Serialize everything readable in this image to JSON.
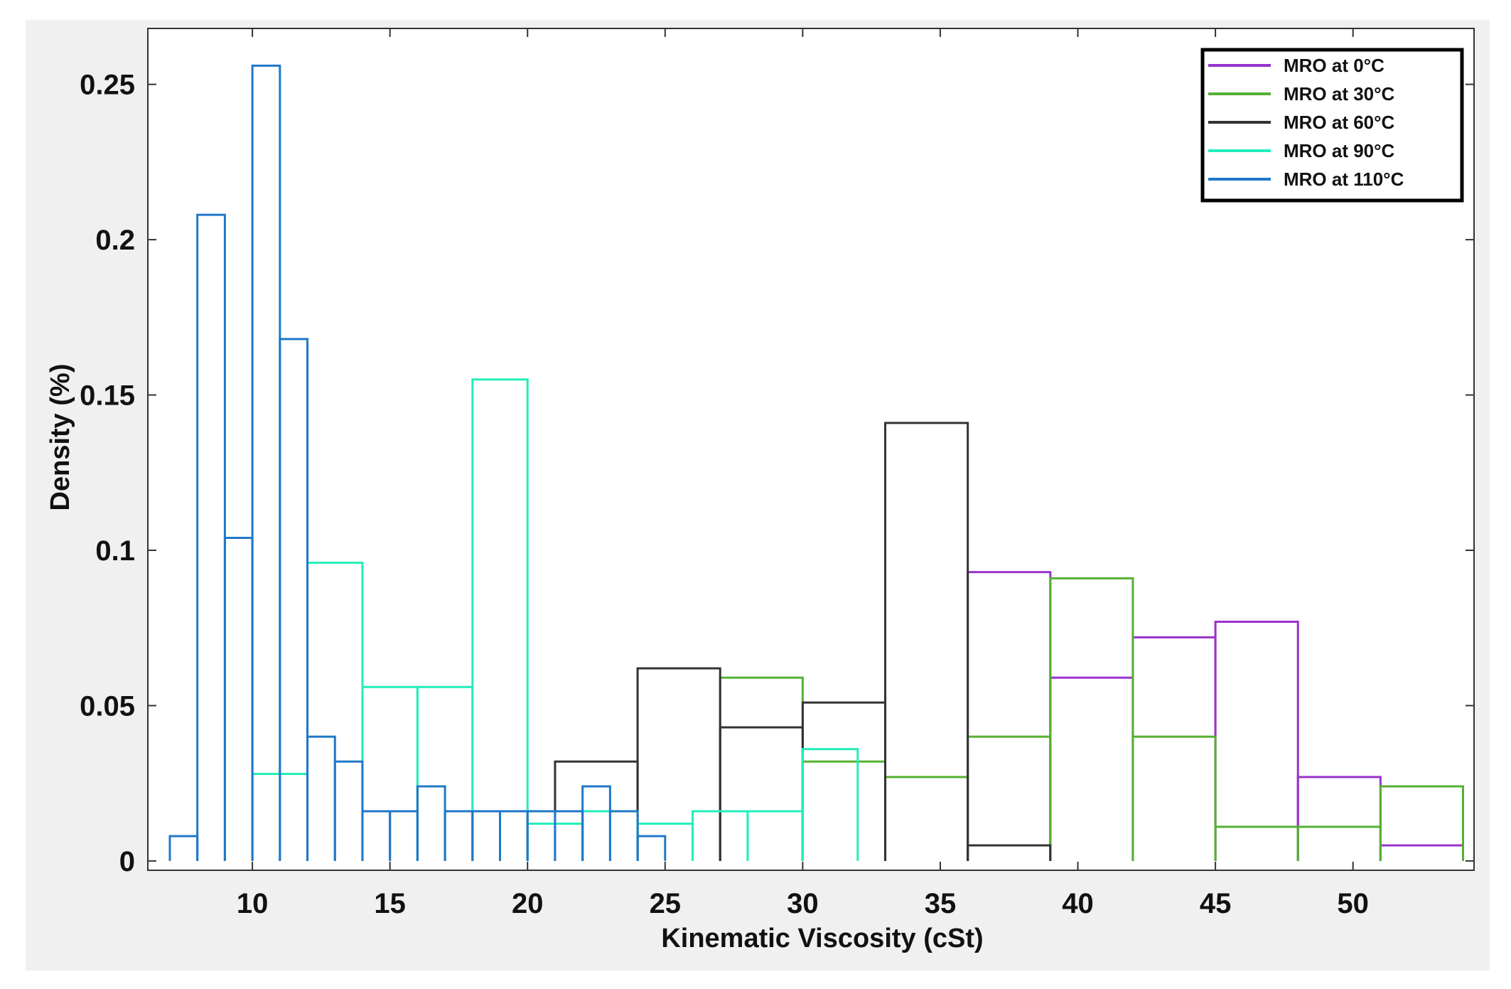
{
  "chart_data": {
    "type": "histogram",
    "title": "",
    "xlabel": "Kinematic Viscosity (cSt)",
    "ylabel": "Density (%)",
    "xlim": [
      6.2,
      54.4
    ],
    "ylim": [
      -0.003,
      0.268
    ],
    "xticks": [
      10,
      15,
      20,
      25,
      30,
      35,
      40,
      45,
      50
    ],
    "xtick_labels": [
      "10",
      "15",
      "20",
      "25",
      "30",
      "35",
      "40",
      "45",
      "50"
    ],
    "yticks": [
      0,
      0.05,
      0.1,
      0.15,
      0.2,
      0.25
    ],
    "ytick_labels": [
      "0",
      "0.05",
      "0.1",
      "0.15",
      "0.2",
      "0.25"
    ],
    "legend_position": "top-right",
    "series": [
      {
        "name": "MRO at 0°C",
        "color": "#9933cc",
        "bins": [
          [
            36,
            39,
            0.093
          ],
          [
            39,
            42,
            0.059
          ],
          [
            42,
            45,
            0.072
          ],
          [
            45,
            48,
            0.077
          ],
          [
            48,
            51,
            0.027
          ],
          [
            51,
            54,
            0.005
          ]
        ]
      },
      {
        "name": "MRO at 30°C",
        "color": "#55b033",
        "bins": [
          [
            27,
            30,
            0.059
          ],
          [
            30,
            33,
            0.032
          ],
          [
            33,
            36,
            0.027
          ],
          [
            36,
            39,
            0.04
          ],
          [
            39,
            42,
            0.091
          ],
          [
            42,
            45,
            0.04
          ],
          [
            45,
            48,
            0.011
          ],
          [
            48,
            51,
            0.011
          ],
          [
            51,
            54,
            0.024
          ]
        ]
      },
      {
        "name": "MRO at 60°C",
        "color": "#333333",
        "bins": [
          [
            21,
            24,
            0.032
          ],
          [
            24,
            27,
            0.062
          ],
          [
            27,
            30,
            0.043
          ],
          [
            30,
            33,
            0.051
          ],
          [
            33,
            36,
            0.141
          ],
          [
            36,
            39,
            0.005
          ]
        ]
      },
      {
        "name": "MRO at 90°C",
        "color": "#22eebb",
        "bins": [
          [
            10,
            12,
            0.028
          ],
          [
            12,
            14,
            0.096
          ],
          [
            14,
            16,
            0.056
          ],
          [
            16,
            18,
            0.056
          ],
          [
            18,
            20,
            0.155
          ],
          [
            20,
            22,
            0.012
          ],
          [
            22,
            24,
            0.016
          ],
          [
            24,
            26,
            0.012
          ],
          [
            26,
            28,
            0.016
          ],
          [
            28,
            30,
            0.016
          ],
          [
            30,
            32,
            0.036
          ]
        ]
      },
      {
        "name": "MRO at 110°C",
        "color": "#1f78c8",
        "bins": [
          [
            7,
            8,
            0.008
          ],
          [
            8,
            9,
            0.208
          ],
          [
            9,
            10,
            0.104
          ],
          [
            10,
            11,
            0.256
          ],
          [
            11,
            12,
            0.168
          ],
          [
            12,
            13,
            0.04
          ],
          [
            13,
            14,
            0.032
          ],
          [
            14,
            15,
            0.016
          ],
          [
            15,
            16,
            0.016
          ],
          [
            16,
            17,
            0.024
          ],
          [
            17,
            18,
            0.016
          ],
          [
            18,
            19,
            0.016
          ],
          [
            19,
            20,
            0.016
          ],
          [
            20,
            21,
            0.016
          ],
          [
            21,
            22,
            0.016
          ],
          [
            22,
            23,
            0.024
          ],
          [
            23,
            24,
            0.016
          ],
          [
            24,
            25,
            0.008
          ]
        ]
      }
    ]
  }
}
